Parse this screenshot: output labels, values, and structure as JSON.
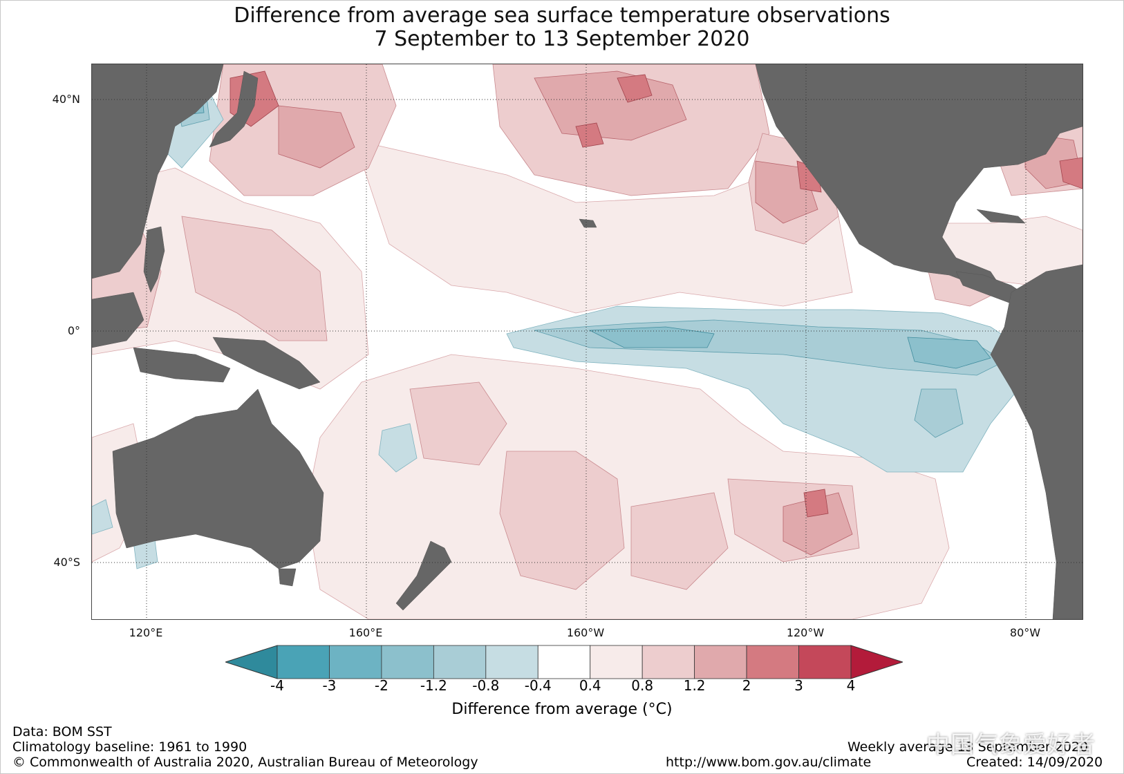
{
  "title": {
    "line1": "Difference from average sea surface temperature observations",
    "line2": "7 September to 13 September 2020"
  },
  "map": {
    "region": "Pacific Ocean",
    "latitude_labels": [
      "40°N",
      "0°",
      "40°S"
    ],
    "longitude_labels": [
      "120°E",
      "160°E",
      "160°W",
      "120°W",
      "80°W"
    ],
    "land_color": "#666666",
    "grid": "dotted"
  },
  "colorbar": {
    "ticks": [
      "-4",
      "-3",
      "-2",
      "-1.2",
      "-0.8",
      "-0.4",
      "0.4",
      "0.8",
      "1.2",
      "2",
      "3",
      "4"
    ],
    "colors": [
      "#2f8a9c",
      "#4aa3b6",
      "#6db3c3",
      "#8cc0cc",
      "#a9cdd6",
      "#c6dde3",
      "#ffffff",
      "#f7ebea",
      "#edcdce",
      "#e0a9ac",
      "#d47a81",
      "#c4485a",
      "#b31b3a"
    ],
    "label": "Difference from average (°C)"
  },
  "footer": {
    "data": "Data: BOM SST",
    "baseline": "Climatology baseline: 1961 to 1990",
    "copyright": "© Commonwealth of Australia 2020, Australian Bureau of Meteorology",
    "url": "http://www.bom.gov.au/climate",
    "weekly": "Weekly average 13 September 2020",
    "created": "Created: 14/09/2020"
  },
  "watermark": "中国气象爱好者"
}
